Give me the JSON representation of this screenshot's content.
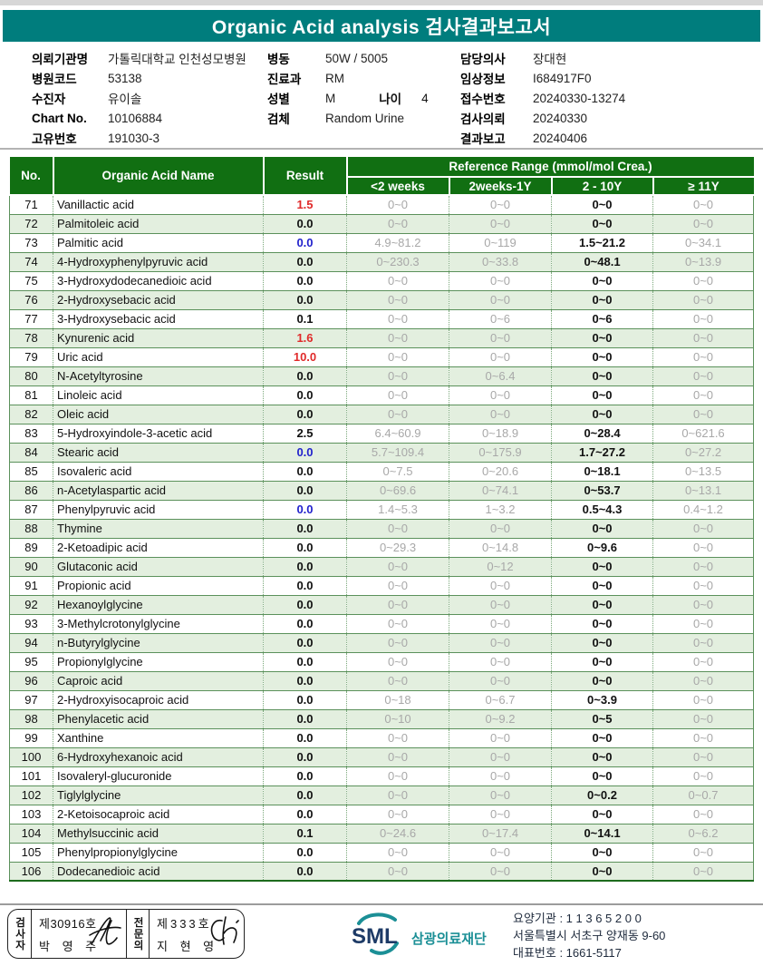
{
  "title": "Organic Acid analysis 검사결과보고서",
  "patient_info": {
    "left": [
      {
        "label": "의뢰기관명",
        "value": "가톨릭대학교 인천성모병원"
      },
      {
        "label": "병원코드",
        "value": "53138"
      },
      {
        "label": "수진자",
        "value": "유이솔"
      },
      {
        "label": "Chart No.",
        "value": "10106884"
      },
      {
        "label": "고유번호",
        "value": "191030-3"
      }
    ],
    "middle": [
      {
        "label": "병동",
        "value": "50W / 5005"
      },
      {
        "label": "진료과",
        "value": "RM"
      },
      {
        "label": "성별",
        "value": "M",
        "label2": "나이",
        "value2": "4"
      },
      {
        "label": "검체",
        "value": "Random Urine"
      }
    ],
    "right": [
      {
        "label": "담당의사",
        "value": "장대현"
      },
      {
        "label": "임상정보",
        "value": "I684917F0"
      },
      {
        "label": "접수번호",
        "value": "20240330-13274"
      },
      {
        "label": "검사의뢰",
        "value": "20240330"
      },
      {
        "label": "결과보고",
        "value": "20240406"
      }
    ]
  },
  "table": {
    "col_no": "No.",
    "col_name": "Organic Acid Name",
    "col_result": "Result",
    "ref_header": "Reference Range (mmol/mol Crea.)",
    "age_cols": [
      "<2 weeks",
      "2weeks-1Y",
      "2 - 10Y",
      "≥ 11Y"
    ],
    "rows": [
      {
        "no": "71",
        "name": "Vanillactic acid",
        "result": "1.5",
        "flag": "high",
        "ref": [
          "0~0",
          "0~0",
          "0~0",
          "0~0"
        ]
      },
      {
        "no": "72",
        "name": "Palmitoleic acid",
        "result": "0.0",
        "flag": "",
        "ref": [
          "0~0",
          "0~0",
          "0~0",
          "0~0"
        ]
      },
      {
        "no": "73",
        "name": "Palmitic acid",
        "result": "0.0",
        "flag": "low",
        "ref": [
          "4.9~81.2",
          "0~119",
          "1.5~21.2",
          "0~34.1"
        ]
      },
      {
        "no": "74",
        "name": "4-Hydroxyphenylpyruvic acid",
        "result": "0.0",
        "flag": "",
        "ref": [
          "0~230.3",
          "0~33.8",
          "0~48.1",
          "0~13.9"
        ]
      },
      {
        "no": "75",
        "name": "3-Hydroxydodecanedioic acid",
        "result": "0.0",
        "flag": "",
        "ref": [
          "0~0",
          "0~0",
          "0~0",
          "0~0"
        ]
      },
      {
        "no": "76",
        "name": "2-Hydroxysebacic acid",
        "result": "0.0",
        "flag": "",
        "ref": [
          "0~0",
          "0~0",
          "0~0",
          "0~0"
        ]
      },
      {
        "no": "77",
        "name": "3-Hydroxysebacic acid",
        "result": "0.1",
        "flag": "",
        "ref": [
          "0~0",
          "0~6",
          "0~6",
          "0~0"
        ]
      },
      {
        "no": "78",
        "name": "Kynurenic acid",
        "result": "1.6",
        "flag": "high",
        "ref": [
          "0~0",
          "0~0",
          "0~0",
          "0~0"
        ]
      },
      {
        "no": "79",
        "name": "Uric acid",
        "result": "10.0",
        "flag": "high",
        "ref": [
          "0~0",
          "0~0",
          "0~0",
          "0~0"
        ]
      },
      {
        "no": "80",
        "name": "N-Acetyltyrosine",
        "result": "0.0",
        "flag": "",
        "ref": [
          "0~0",
          "0~6.4",
          "0~0",
          "0~0"
        ]
      },
      {
        "no": "81",
        "name": "Linoleic acid",
        "result": "0.0",
        "flag": "",
        "ref": [
          "0~0",
          "0~0",
          "0~0",
          "0~0"
        ]
      },
      {
        "no": "82",
        "name": "Oleic acid",
        "result": "0.0",
        "flag": "",
        "ref": [
          "0~0",
          "0~0",
          "0~0",
          "0~0"
        ]
      },
      {
        "no": "83",
        "name": "5-Hydroxyindole-3-acetic acid",
        "result": "2.5",
        "flag": "",
        "ref": [
          "6.4~60.9",
          "0~18.9",
          "0~28.4",
          "0~621.6"
        ]
      },
      {
        "no": "84",
        "name": "Stearic acid",
        "result": "0.0",
        "flag": "low",
        "ref": [
          "5.7~109.4",
          "0~175.9",
          "1.7~27.2",
          "0~27.2"
        ]
      },
      {
        "no": "85",
        "name": "Isovaleric acid",
        "result": "0.0",
        "flag": "",
        "ref": [
          "0~7.5",
          "0~20.6",
          "0~18.1",
          "0~13.5"
        ]
      },
      {
        "no": "86",
        "name": "n-Acetylaspartic acid",
        "result": "0.0",
        "flag": "",
        "ref": [
          "0~69.6",
          "0~74.1",
          "0~53.7",
          "0~13.1"
        ]
      },
      {
        "no": "87",
        "name": "Phenylpyruvic acid",
        "result": "0.0",
        "flag": "low",
        "ref": [
          "1.4~5.3",
          "1~3.2",
          "0.5~4.3",
          "0.4~1.2"
        ]
      },
      {
        "no": "88",
        "name": "Thymine",
        "result": "0.0",
        "flag": "",
        "ref": [
          "0~0",
          "0~0",
          "0~0",
          "0~0"
        ]
      },
      {
        "no": "89",
        "name": "2-Ketoadipic acid",
        "result": "0.0",
        "flag": "",
        "ref": [
          "0~29.3",
          "0~14.8",
          "0~9.6",
          "0~0"
        ]
      },
      {
        "no": "90",
        "name": "Glutaconic acid",
        "result": "0.0",
        "flag": "",
        "ref": [
          "0~0",
          "0~12",
          "0~0",
          "0~0"
        ]
      },
      {
        "no": "91",
        "name": "Propionic acid",
        "result": "0.0",
        "flag": "",
        "ref": [
          "0~0",
          "0~0",
          "0~0",
          "0~0"
        ]
      },
      {
        "no": "92",
        "name": "Hexanoylglycine",
        "result": "0.0",
        "flag": "",
        "ref": [
          "0~0",
          "0~0",
          "0~0",
          "0~0"
        ]
      },
      {
        "no": "93",
        "name": "3-Methylcrotonylglycine",
        "result": "0.0",
        "flag": "",
        "ref": [
          "0~0",
          "0~0",
          "0~0",
          "0~0"
        ]
      },
      {
        "no": "94",
        "name": "n-Butyrylglycine",
        "result": "0.0",
        "flag": "",
        "ref": [
          "0~0",
          "0~0",
          "0~0",
          "0~0"
        ]
      },
      {
        "no": "95",
        "name": "Propionylglycine",
        "result": "0.0",
        "flag": "",
        "ref": [
          "0~0",
          "0~0",
          "0~0",
          "0~0"
        ]
      },
      {
        "no": "96",
        "name": "Caproic acid",
        "result": "0.0",
        "flag": "",
        "ref": [
          "0~0",
          "0~0",
          "0~0",
          "0~0"
        ]
      },
      {
        "no": "97",
        "name": "2-Hydroxyisocaproic acid",
        "result": "0.0",
        "flag": "",
        "ref": [
          "0~18",
          "0~6.7",
          "0~3.9",
          "0~0"
        ]
      },
      {
        "no": "98",
        "name": "Phenylacetic acid",
        "result": "0.0",
        "flag": "",
        "ref": [
          "0~10",
          "0~9.2",
          "0~5",
          "0~0"
        ]
      },
      {
        "no": "99",
        "name": "Xanthine",
        "result": "0.0",
        "flag": "",
        "ref": [
          "0~0",
          "0~0",
          "0~0",
          "0~0"
        ]
      },
      {
        "no": "100",
        "name": "6-Hydroxyhexanoic acid",
        "result": "0.0",
        "flag": "",
        "ref": [
          "0~0",
          "0~0",
          "0~0",
          "0~0"
        ]
      },
      {
        "no": "101",
        "name": "Isovaleryl-glucuronide",
        "result": "0.0",
        "flag": "",
        "ref": [
          "0~0",
          "0~0",
          "0~0",
          "0~0"
        ]
      },
      {
        "no": "102",
        "name": "Tiglylglycine",
        "result": "0.0",
        "flag": "",
        "ref": [
          "0~0",
          "0~0",
          "0~0.2",
          "0~0.7"
        ]
      },
      {
        "no": "103",
        "name": "2-Ketoisocaproic acid",
        "result": "0.0",
        "flag": "",
        "ref": [
          "0~0",
          "0~0",
          "0~0",
          "0~0"
        ]
      },
      {
        "no": "104",
        "name": "Methylsuccinic acid",
        "result": "0.1",
        "flag": "",
        "ref": [
          "0~24.6",
          "0~17.4",
          "0~14.1",
          "0~6.2"
        ]
      },
      {
        "no": "105",
        "name": "Phenylpropionylglycine",
        "result": "0.0",
        "flag": "",
        "ref": [
          "0~0",
          "0~0",
          "0~0",
          "0~0"
        ]
      },
      {
        "no": "106",
        "name": "Dodecanedioic acid",
        "result": "0.0",
        "flag": "",
        "ref": [
          "0~0",
          "0~0",
          "0~0",
          "0~0"
        ]
      }
    ]
  },
  "footer": {
    "stamp": {
      "examiner_role": "검사자",
      "examiner_cert": "제30916호",
      "examiner_name": "박 영 주",
      "specialist_role": "전문의",
      "specialist_cert": "제333호",
      "specialist_name": "지 현 영"
    },
    "sml": {
      "logo_text": "SML",
      "org_name": "삼광의료재단",
      "lines": [
        "요양기관 : 1 1 3 6 5 2 0 0",
        "서울특별시 서초구 양재동 9-60",
        "대표번호 : 1661-5117"
      ]
    }
  },
  "colors": {
    "banner_teal": "#007d7d",
    "header_green": "#116f12",
    "row_alt_green": "#e3efdf",
    "result_high_red": "#e02a2a",
    "result_low_blue": "#2222cc",
    "ref_gray": "#a8a8a8",
    "logo_teal": "#1b8f96",
    "logo_navy": "#1d3a66"
  }
}
